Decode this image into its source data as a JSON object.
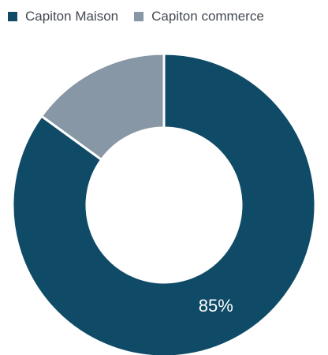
{
  "chart_data": {
    "type": "pie",
    "subtype": "donut",
    "legend_position": "top",
    "categories": [
      "Capiton Maison",
      "Capiton commerce"
    ],
    "values": [
      85,
      15
    ],
    "colors": [
      "#0f4a67",
      "#8797a5"
    ],
    "labels": [
      "85%",
      ""
    ]
  }
}
